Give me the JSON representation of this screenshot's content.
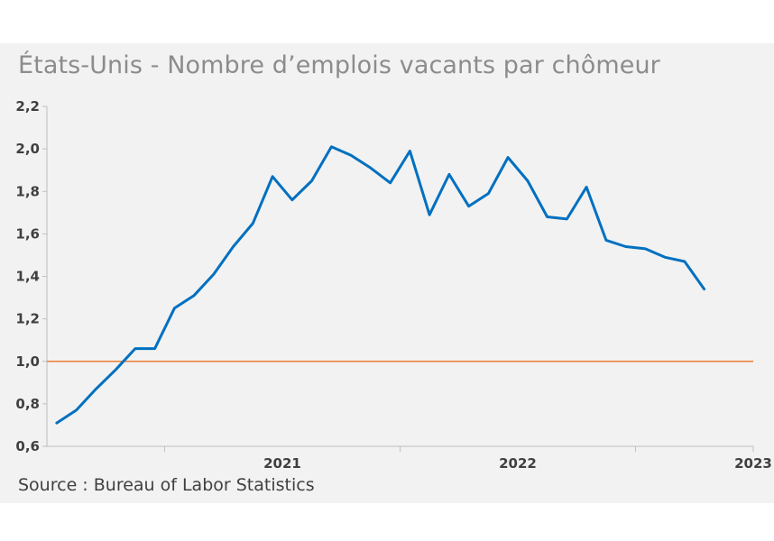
{
  "title": "États-Unis  - Nombre d’emplois vacants par chômeur",
  "source": "Source : Bureau of Labor Statistics",
  "colors": {
    "series": "#0070c0",
    "reference": "#ed7d31",
    "axis": "#bfbfbf",
    "panel": "#f2f2f2"
  },
  "chart_data": {
    "type": "line",
    "title": "États-Unis  - Nombre d’emplois vacants par chômeur",
    "xlabel": "",
    "ylabel": "",
    "ylim": [
      0.6,
      2.2
    ],
    "yticks": [
      "0,6",
      "0,8",
      "1,0",
      "1,2",
      "1,4",
      "1,6",
      "1,8",
      "2,0",
      "2,2"
    ],
    "x_tick_labels": [
      "2021",
      "2022",
      "2023"
    ],
    "x_start": "2020-07",
    "x_end": "2023-06",
    "grid": false,
    "reference_line": {
      "y": 1.0
    },
    "series": [
      {
        "x": [
          "2020-07",
          "2020-08",
          "2020-09",
          "2020-10",
          "2020-11",
          "2020-12",
          "2021-01",
          "2021-02",
          "2021-03",
          "2021-04",
          "2021-05",
          "2021-06",
          "2021-07",
          "2021-08",
          "2021-09",
          "2021-10",
          "2021-11",
          "2021-12",
          "2022-01",
          "2022-02",
          "2022-03",
          "2022-04",
          "2022-05",
          "2022-06",
          "2022-07",
          "2022-08",
          "2022-09",
          "2022-10",
          "2022-11",
          "2022-12",
          "2023-01",
          "2023-02",
          "2023-03",
          "2023-04"
        ],
        "values": [
          0.71,
          0.77,
          0.87,
          0.96,
          1.06,
          1.06,
          1.25,
          1.31,
          1.41,
          1.54,
          1.65,
          1.87,
          1.76,
          1.85,
          2.01,
          1.97,
          1.91,
          1.84,
          1.99,
          1.69,
          1.88,
          1.73,
          1.79,
          1.96,
          1.85,
          1.68,
          1.67,
          1.82,
          1.57,
          1.54,
          1.53,
          1.49,
          1.47,
          1.34
        ]
      }
    ]
  }
}
